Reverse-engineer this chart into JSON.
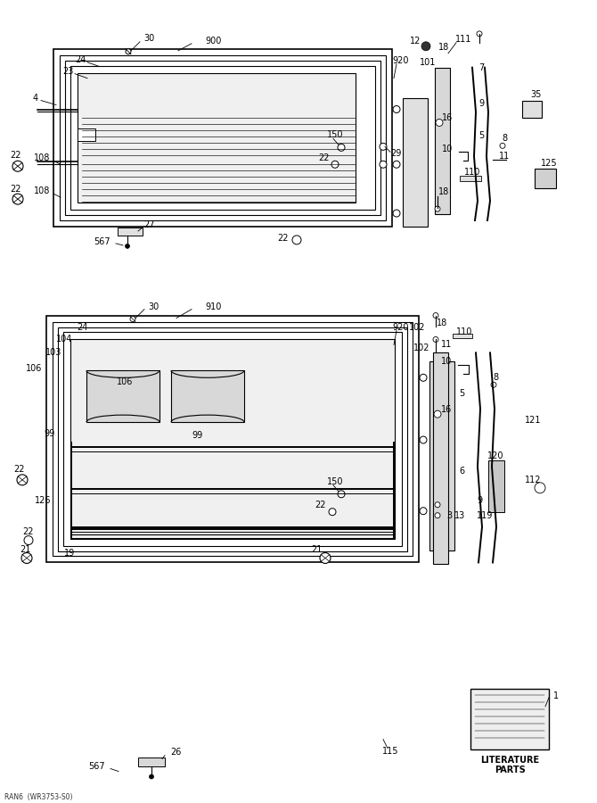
{
  "bg_color": "#ffffff",
  "fig_width": 6.7,
  "fig_height": 9.0,
  "dpi": 100,
  "bottom_text": "LITERATURE\nPARTS",
  "footer_text": "RAN6  (WR3753-S0)"
}
